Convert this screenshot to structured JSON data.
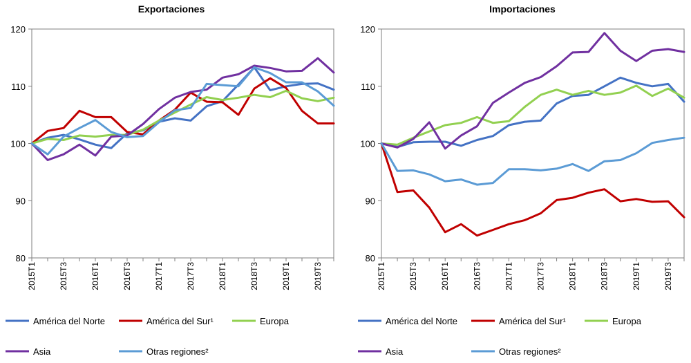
{
  "chart_data": [
    {
      "type": "line",
      "title": "Exportaciones",
      "xlabel": "",
      "ylabel": "",
      "ylim": [
        80,
        120
      ],
      "yticks": [
        80,
        90,
        100,
        110,
        120
      ],
      "grid": false,
      "categories": [
        "2015T1",
        "2015T2",
        "2015T3",
        "2015T4",
        "2016T1",
        "2016T2",
        "2016T3",
        "2016T4",
        "2017T1",
        "2017T2",
        "2017T3",
        "2017T4",
        "2018T1",
        "2018T2",
        "2018T3",
        "2018T4",
        "2019T1",
        "2019T2",
        "2019T3",
        "2019T4"
      ],
      "tick_labels": [
        "2015T1",
        "",
        "2015T3",
        "",
        "2016T1",
        "",
        "2016T3",
        "",
        "2017T1",
        "",
        "2017T3",
        "",
        "2018T1",
        "",
        "2018T3",
        "",
        "2019T1",
        "",
        "2019T3",
        ""
      ],
      "series": [
        {
          "name": "América del Norte",
          "color": "#4472C4",
          "values": [
            100,
            101.0,
            101.5,
            100.7,
            99.8,
            99.2,
            101.8,
            102.3,
            103.8,
            104.4,
            104.0,
            106.5,
            107.4,
            110.3,
            113.3,
            109.3,
            110.0,
            110.4,
            110.5,
            109.4
          ]
        },
        {
          "name": "América del Sur¹",
          "color": "#C00000",
          "values": [
            100,
            102.2,
            102.7,
            105.7,
            104.6,
            104.6,
            102.0,
            101.6,
            104.0,
            105.9,
            108.9,
            107.3,
            107.2,
            105.0,
            109.6,
            111.4,
            109.7,
            105.7,
            103.5,
            103.5
          ]
        },
        {
          "name": "Europa",
          "color": "#92D050",
          "values": [
            100,
            100.8,
            100.6,
            101.4,
            101.2,
            101.5,
            101.5,
            102.4,
            104.0,
            105.4,
            106.8,
            108.1,
            107.6,
            108.0,
            108.5,
            108.1,
            109.2,
            107.9,
            107.4,
            108.0
          ]
        },
        {
          "name": "Asia",
          "color": "#7030A0",
          "values": [
            100,
            97.1,
            98.1,
            99.8,
            97.9,
            101.2,
            101.4,
            103.4,
            106.0,
            108.0,
            109.0,
            109.4,
            111.5,
            112.1,
            113.6,
            113.2,
            112.6,
            112.7,
            114.9,
            112.4
          ]
        },
        {
          "name": "Otras regiones²",
          "color": "#5B9BD5",
          "values": [
            100,
            98.1,
            101.2,
            102.7,
            104.1,
            102.0,
            101.1,
            101.3,
            103.7,
            105.8,
            106.2,
            110.4,
            110.2,
            110.0,
            113.3,
            112.3,
            110.7,
            110.7,
            109.1,
            106.6
          ]
        }
      ]
    },
    {
      "type": "line",
      "title": "Importaciones",
      "xlabel": "",
      "ylabel": "",
      "ylim": [
        80,
        120
      ],
      "yticks": [
        80,
        90,
        100,
        110,
        120
      ],
      "grid": false,
      "categories": [
        "2015T1",
        "2015T2",
        "2015T3",
        "2015T4",
        "2016T1",
        "2016T2",
        "2016T3",
        "2016T4",
        "2017T1",
        "2017T2",
        "2017T3",
        "2017T4",
        "2018T1",
        "2018T2",
        "2018T3",
        "2018T4",
        "2019T1",
        "2019T2",
        "2019T3",
        "2019T4"
      ],
      "tick_labels": [
        "2015T1",
        "",
        "2015T3",
        "",
        "2016T1",
        "",
        "2016T3",
        "",
        "2017T1",
        "",
        "2017T3",
        "",
        "2018T1",
        "",
        "2018T3",
        "",
        "2019T1",
        "",
        "2019T3",
        ""
      ],
      "series": [
        {
          "name": "América del Norte",
          "color": "#4472C4",
          "values": [
            100,
            99.4,
            100.2,
            100.3,
            100.3,
            99.6,
            100.6,
            101.3,
            103.2,
            103.8,
            104.0,
            107.0,
            108.3,
            108.5,
            110.0,
            111.5,
            110.6,
            110.0,
            110.4,
            107.3
          ]
        },
        {
          "name": "América del Sur¹",
          "color": "#C00000",
          "values": [
            100,
            91.5,
            91.8,
            88.8,
            84.5,
            85.9,
            83.9,
            84.9,
            85.9,
            86.6,
            87.8,
            90.1,
            90.5,
            91.4,
            92.0,
            89.9,
            90.3,
            89.8,
            89.9,
            87.1
          ]
        },
        {
          "name": "Europa",
          "color": "#92D050",
          "values": [
            100,
            99.8,
            101.0,
            102.1,
            103.2,
            103.6,
            104.6,
            103.6,
            103.9,
            106.4,
            108.5,
            109.4,
            108.5,
            109.2,
            108.5,
            108.9,
            110.1,
            108.3,
            109.6,
            108.0
          ]
        },
        {
          "name": "Asia",
          "color": "#7030A0",
          "values": [
            100,
            99.3,
            100.8,
            103.7,
            99.1,
            101.4,
            103.0,
            107.1,
            108.9,
            110.6,
            111.6,
            113.5,
            115.9,
            116.0,
            119.3,
            116.2,
            114.4,
            116.2,
            116.5,
            116.0
          ]
        },
        {
          "name": "Otras regiones²",
          "color": "#5B9BD5",
          "values": [
            100,
            95.2,
            95.3,
            94.6,
            93.4,
            93.7,
            92.8,
            93.1,
            95.5,
            95.5,
            95.3,
            95.6,
            96.4,
            95.2,
            96.9,
            97.1,
            98.3,
            100.1,
            100.6,
            101.0
          ]
        }
      ]
    }
  ]
}
